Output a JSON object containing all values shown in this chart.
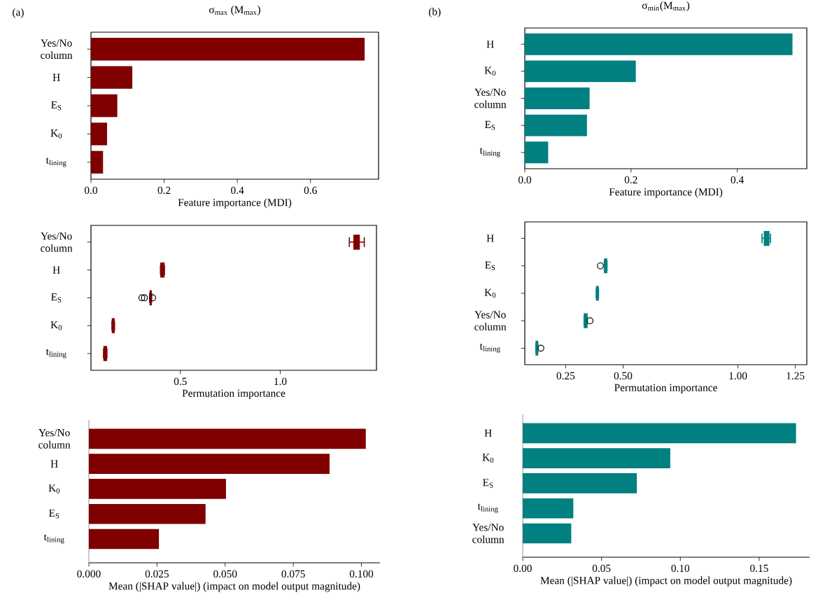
{
  "chart_data": [
    {
      "type": "bar",
      "orientation": "horizontal",
      "title": "σ$_{max}$ (M$_{max}$)",
      "annotations": [
        "(a)"
      ],
      "xlabel": "Feature importance (MDI)",
      "color": "#800000",
      "categories": [
        "Yes/No column",
        "H",
        "E$_{S}$",
        "K$_{0}$",
        "t$_{lining}$"
      ],
      "values": [
        0.748,
        0.113,
        0.072,
        0.044,
        0.033
      ],
      "xlim": [
        0,
        0.786
      ],
      "xticks": [
        {
          "value": 0,
          "label": "0.0"
        },
        {
          "value": 0.2,
          "label": "0.2"
        },
        {
          "value": 0.4,
          "label": "0.4"
        },
        {
          "value": 0.6,
          "label": "0.6"
        }
      ]
    },
    {
      "type": "bar",
      "orientation": "horizontal",
      "title": "σ$_{min}$(M$_{max}$)",
      "annotations": [
        "(b)"
      ],
      "xlabel": "Feature importance (MDI)",
      "color": "#008080",
      "categories": [
        "H",
        "K$_{0}$",
        "Yes/No column",
        "E$_{S}$",
        "t$_{lining}$"
      ],
      "values": [
        0.504,
        0.209,
        0.122,
        0.117,
        0.044
      ],
      "xlim": [
        0,
        0.531
      ],
      "xticks": [
        {
          "value": 0,
          "label": "0.0"
        },
        {
          "value": 0.2,
          "label": "0.2"
        },
        {
          "value": 0.4,
          "label": "0.4"
        }
      ]
    },
    {
      "type": "box",
      "orientation": "horizontal",
      "xlabel": "Permutation importance",
      "color": "#800000",
      "categories": [
        "Yes/No column",
        "H",
        "E$_{S}$",
        "K$_{0}$",
        "t$_{lining}$"
      ],
      "boxes": [
        {
          "low": 1.346,
          "q1": 1.369,
          "median": 1.382,
          "q3": 1.396,
          "high": 1.421
        },
        {
          "low": 0.4,
          "q1": 0.402,
          "median": 0.41,
          "q3": 0.418,
          "high": 0.42
        },
        {
          "low": 0.346,
          "q1": 0.348,
          "median": 0.35,
          "q3": 0.354,
          "high": 0.356,
          "outliers": [
            0.307,
            0.32,
            0.361
          ]
        },
        {
          "low": 0.157,
          "q1": 0.159,
          "median": 0.163,
          "q3": 0.168,
          "high": 0.17
        },
        {
          "low": 0.115,
          "q1": 0.117,
          "median": 0.124,
          "q3": 0.13,
          "high": 0.132
        }
      ],
      "xlim": [
        0.052,
        1.482
      ],
      "xticks": [
        {
          "value": 0.5,
          "label": "0.5"
        },
        {
          "value": 1.0,
          "label": "1.0"
        }
      ]
    },
    {
      "type": "box",
      "orientation": "horizontal",
      "xlabel": "Permutation importance",
      "color": "#008080",
      "categories": [
        "H",
        "E$_{S}$",
        "K$_{0}$",
        "Yes/No column",
        "t$_{lining}$"
      ],
      "boxes": [
        {
          "low": 1.105,
          "q1": 1.115,
          "median": 1.125,
          "q3": 1.135,
          "high": 1.142
        },
        {
          "low": 0.418,
          "q1": 0.419,
          "median": 0.424,
          "q3": 0.429,
          "high": 0.43,
          "outliers": [
            0.401
          ]
        },
        {
          "low": 0.383,
          "q1": 0.384,
          "median": 0.388,
          "q3": 0.392,
          "high": 0.393
        },
        {
          "low": 0.33,
          "q1": 0.331,
          "median": 0.337,
          "q3": 0.343,
          "high": 0.344,
          "outliers": [
            0.356
          ]
        },
        {
          "low": 0.12,
          "q1": 0.121,
          "median": 0.125,
          "q3": 0.128,
          "high": 0.129,
          "outliers": [
            0.142
          ]
        }
      ],
      "xlim": [
        0.072,
        1.3
      ],
      "xticks": [
        {
          "value": 0.25,
          "label": "0.25"
        },
        {
          "value": 0.5,
          "label": "0.50"
        },
        {
          "value": 1.0,
          "label": "1.00"
        },
        {
          "value": 1.25,
          "label": "1.25"
        }
      ]
    },
    {
      "type": "bar",
      "orientation": "horizontal",
      "xlabel": "Mean  (|SHAP value|) (impact on model output magnitude)",
      "color": "#800000",
      "categories": [
        "Yes/No column",
        "H",
        "K$_{0}$",
        "E$_{S}$",
        "t$_{lining}$"
      ],
      "values": [
        0.1016,
        0.0883,
        0.0503,
        0.0428,
        0.0257
      ],
      "xlim": [
        0,
        0.1068
      ],
      "xticks": [
        {
          "value": 0,
          "label": "0.000"
        },
        {
          "value": 0.025,
          "label": "0.025"
        },
        {
          "value": 0.05,
          "label": "0.050"
        },
        {
          "value": 0.075,
          "label": "0.075"
        },
        {
          "value": 0.1,
          "label": "0.100"
        }
      ]
    },
    {
      "type": "bar",
      "orientation": "horizontal",
      "xlabel": "Mean  (|SHAP value|) (impact on model output magnitude)",
      "color": "#008080",
      "categories": [
        "H",
        "K$_{0}$",
        "E$_{S}$",
        "t$_{lining}$",
        "Yes/No column"
      ],
      "values": [
        0.1734,
        0.0936,
        0.0724,
        0.0321,
        0.0308
      ],
      "xlim": [
        0,
        0.182
      ],
      "xticks": [
        {
          "value": 0,
          "label": "0.00"
        },
        {
          "value": 0.05,
          "label": "0.05"
        },
        {
          "value": 0.1,
          "label": "0.10"
        },
        {
          "value": 0.15,
          "label": "0.15"
        }
      ]
    }
  ]
}
